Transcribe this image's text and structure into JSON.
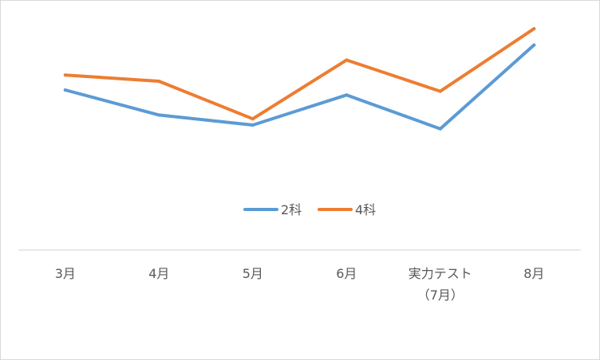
{
  "chart_data": {
    "type": "line",
    "categories": [
      "3月",
      "4月",
      "5月",
      "6月",
      "実力テスト（7月）",
      "8月"
    ],
    "category_lines": [
      [
        "3月"
      ],
      [
        "4月"
      ],
      [
        "5月"
      ],
      [
        "6月"
      ],
      [
        "実力テスト",
        "（7月）"
      ],
      [
        "8月"
      ]
    ],
    "series": [
      {
        "name": "2科",
        "color": "#5b9bd5",
        "values": [
          64,
          54,
          50,
          62,
          48.5,
          82
        ]
      },
      {
        "name": "4科",
        "color": "#ed7d31",
        "values": [
          70,
          67.5,
          52.5,
          76,
          63.5,
          88.5
        ]
      }
    ],
    "ylim": [
      0,
      100
    ],
    "grid": false,
    "y_axis_visible": false,
    "legend_position": "inside-bottom-center",
    "title": "",
    "xlabel": "",
    "ylabel": ""
  }
}
